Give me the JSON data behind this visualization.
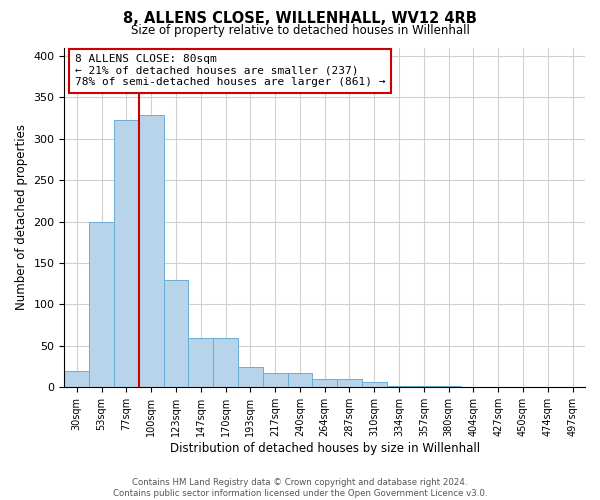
{
  "title": "8, ALLENS CLOSE, WILLENHALL, WV12 4RB",
  "subtitle": "Size of property relative to detached houses in Willenhall",
  "xlabel": "Distribution of detached houses by size in Willenhall",
  "ylabel": "Number of detached properties",
  "footer_line1": "Contains HM Land Registry data © Crown copyright and database right 2024.",
  "footer_line2": "Contains public sector information licensed under the Open Government Licence v3.0.",
  "bin_labels": [
    "30sqm",
    "53sqm",
    "77sqm",
    "100sqm",
    "123sqm",
    "147sqm",
    "170sqm",
    "193sqm",
    "217sqm",
    "240sqm",
    "264sqm",
    "287sqm",
    "310sqm",
    "334sqm",
    "357sqm",
    "380sqm",
    "404sqm",
    "427sqm",
    "450sqm",
    "474sqm",
    "497sqm"
  ],
  "bar_values": [
    20,
    199,
    322,
    328,
    130,
    60,
    60,
    25,
    17,
    17,
    10,
    10,
    7,
    2,
    2,
    2,
    1,
    1,
    0,
    1,
    1
  ],
  "bar_color": "#b8d4ea",
  "bar_edge_color": "#6aaed6",
  "ylim": [
    0,
    410
  ],
  "yticks": [
    0,
    50,
    100,
    150,
    200,
    250,
    300,
    350,
    400
  ],
  "marker_label": "8 ALLENS CLOSE: 80sqm",
  "text_smaller": "← 21% of detached houses are smaller (237)",
  "text_larger": "78% of semi-detached houses are larger (861) →",
  "annotation_box_color": "#ffffff",
  "annotation_box_edge": "#cc0000",
  "vline_color": "#cc0000",
  "background_color": "#ffffff",
  "grid_color": "#d0d0d0",
  "vline_x_index": 2.5
}
